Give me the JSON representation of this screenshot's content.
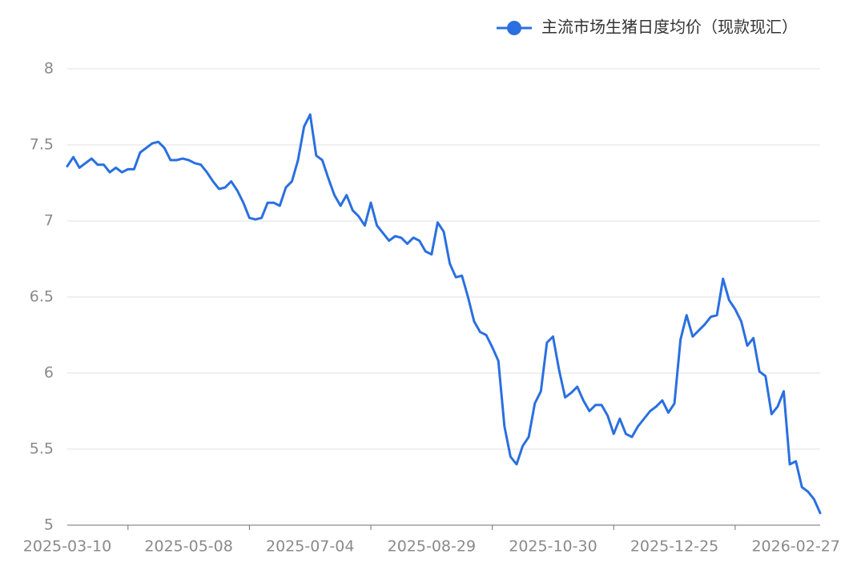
{
  "chart_data": {
    "type": "line",
    "legend_position": "top-right",
    "grid": true,
    "categories": [
      "2025-03-10",
      null,
      null,
      null,
      null,
      null,
      null,
      null,
      null,
      null,
      null,
      null,
      null,
      null,
      null,
      null,
      null,
      null,
      null,
      null,
      "2025-05-08",
      null,
      null,
      null,
      null,
      null,
      null,
      null,
      null,
      null,
      null,
      null,
      null,
      null,
      null,
      null,
      null,
      null,
      null,
      null,
      "2025-07-04",
      null,
      null,
      null,
      null,
      null,
      null,
      null,
      null,
      null,
      null,
      null,
      null,
      null,
      null,
      null,
      null,
      null,
      null,
      null,
      "2025-08-29",
      null,
      null,
      null,
      null,
      null,
      null,
      null,
      null,
      null,
      null,
      null,
      null,
      null,
      null,
      null,
      null,
      null,
      null,
      null,
      "2025-10-30",
      null,
      null,
      null,
      null,
      null,
      null,
      null,
      null,
      null,
      null,
      null,
      null,
      null,
      null,
      null,
      null,
      null,
      null,
      null,
      "2025-12-25",
      null,
      null,
      null,
      null,
      null,
      null,
      null,
      null,
      null,
      null,
      null,
      null,
      null,
      null,
      null,
      null,
      null,
      null,
      null,
      "2026-02-27",
      null,
      null,
      null,
      null
    ],
    "series": [
      {
        "name": "主流市场生猪日度均价（现款现汇）",
        "color": "#2a6fe0",
        "values": [
          7.36,
          7.42,
          7.35,
          7.38,
          7.41,
          7.37,
          7.37,
          7.32,
          7.35,
          7.32,
          7.34,
          7.34,
          7.45,
          7.48,
          7.51,
          7.52,
          7.48,
          7.4,
          7.4,
          7.41,
          7.4,
          7.38,
          7.37,
          7.32,
          7.26,
          7.21,
          7.22,
          7.26,
          7.2,
          7.12,
          7.02,
          7.01,
          7.02,
          7.12,
          7.12,
          7.1,
          7.22,
          7.26,
          7.4,
          7.62,
          7.7,
          7.43,
          7.4,
          7.28,
          7.17,
          7.1,
          7.17,
          7.07,
          7.03,
          6.97,
          7.12,
          6.97,
          6.92,
          6.87,
          6.9,
          6.89,
          6.85,
          6.89,
          6.87,
          6.8,
          6.78,
          6.99,
          6.93,
          6.72,
          6.63,
          6.64,
          6.5,
          6.34,
          6.27,
          6.25,
          6.17,
          6.08,
          5.65,
          5.45,
          5.4,
          5.52,
          5.58,
          5.8,
          5.88,
          6.2,
          6.24,
          6.02,
          5.84,
          5.87,
          5.91,
          5.82,
          5.75,
          5.79,
          5.79,
          5.72,
          5.6,
          5.7,
          5.6,
          5.58,
          5.65,
          5.7,
          5.75,
          5.78,
          5.82,
          5.74,
          5.8,
          6.22,
          6.38,
          6.24,
          6.28,
          6.32,
          6.37,
          6.38,
          6.62,
          6.48,
          6.42,
          6.34,
          6.18,
          6.23,
          6.01,
          5.98,
          5.73,
          5.78,
          5.88,
          5.4,
          5.42,
          5.25,
          5.22,
          5.17,
          5.08
        ]
      }
    ],
    "ylim": [
      5,
      8
    ],
    "yticks": [
      5,
      5.5,
      6,
      6.5,
      7,
      7.5,
      8
    ]
  }
}
